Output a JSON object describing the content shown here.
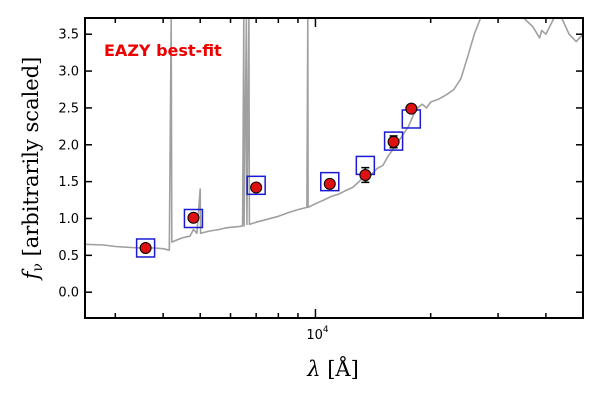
{
  "chart_data": {
    "type": "scatter",
    "xscale": "log",
    "xlim": [
      2500,
      50000
    ],
    "ylim": [
      -0.35,
      3.72
    ],
    "yticks": [
      0.0,
      0.5,
      1.0,
      1.5,
      2.0,
      2.5,
      3.0,
      3.5
    ],
    "ytick_labels": [
      "0.0",
      "0.5",
      "1.0",
      "1.5",
      "2.0",
      "2.5",
      "3.0",
      "3.5"
    ],
    "xtick_label": {
      "value": 10000,
      "base": "10",
      "exponent": "4"
    },
    "ylabel": "f_ν [arbitrarily scaled]",
    "ylabel_symbol": "f",
    "ylabel_subscript": "ν",
    "ylabel_text": " [arbitrarily scaled]",
    "xlabel": "λ [Å]",
    "xlabel_symbol": "λ",
    "xlabel_text": " [Å]",
    "annotation": {
      "text": "EAZY best-fit",
      "color": "#ee0000"
    },
    "colors": {
      "spectrum": "#a0a0a0",
      "observed": "#dd1111",
      "model": "#1a1ad4"
    },
    "model_points": [
      {
        "x": 3600,
        "y": 0.6
      },
      {
        "x": 4800,
        "y": 1.0
      },
      {
        "x": 7000,
        "y": 1.45
      },
      {
        "x": 10900,
        "y": 1.5
      },
      {
        "x": 13500,
        "y": 1.72
      },
      {
        "x": 16000,
        "y": 2.05
      },
      {
        "x": 17800,
        "y": 2.35
      }
    ],
    "observed_points": [
      {
        "x": 3600,
        "y": 0.6,
        "err": 0.03
      },
      {
        "x": 4800,
        "y": 1.01,
        "err": 0.03
      },
      {
        "x": 7000,
        "y": 1.42,
        "err": 0.04
      },
      {
        "x": 10900,
        "y": 1.47,
        "err": 0.04
      },
      {
        "x": 13500,
        "y": 1.59,
        "err": 0.1
      },
      {
        "x": 16000,
        "y": 2.04,
        "err": 0.08
      },
      {
        "x": 17800,
        "y": 2.49,
        "err": 0.04
      }
    ],
    "spectrum": [
      [
        2500,
        0.65
      ],
      [
        2800,
        0.64
      ],
      [
        3000,
        0.62
      ],
      [
        3200,
        0.61
      ],
      [
        3500,
        0.6
      ],
      [
        3800,
        0.6
      ],
      [
        4000,
        0.59
      ],
      [
        4150,
        0.57
      ],
      [
        4200,
        3.72
      ],
      [
        4215,
        0.68
      ],
      [
        4300,
        0.7
      ],
      [
        4500,
        0.74
      ],
      [
        4700,
        0.76
      ],
      [
        4800,
        0.85
      ],
      [
        4900,
        0.8
      ],
      [
        5000,
        1.4
      ],
      [
        5010,
        0.8
      ],
      [
        5300,
        0.83
      ],
      [
        5600,
        0.85
      ],
      [
        5800,
        0.87
      ],
      [
        6000,
        0.88
      ],
      [
        6300,
        0.89
      ],
      [
        6450,
        0.9
      ],
      [
        6500,
        3.72
      ],
      [
        6510,
        0.9
      ],
      [
        6600,
        3.72
      ],
      [
        6620,
        0.92
      ],
      [
        6700,
        3.72
      ],
      [
        6720,
        0.92
      ],
      [
        7000,
        0.95
      ],
      [
        7500,
        0.99
      ],
      [
        8000,
        1.03
      ],
      [
        8500,
        1.08
      ],
      [
        9000,
        1.12
      ],
      [
        9500,
        1.15
      ],
      [
        9550,
        3.72
      ],
      [
        9570,
        1.15
      ],
      [
        10000,
        1.2
      ],
      [
        10500,
        1.25
      ],
      [
        11000,
        1.3
      ],
      [
        11500,
        1.33
      ],
      [
        12000,
        1.38
      ],
      [
        12500,
        1.42
      ],
      [
        13000,
        1.5
      ],
      [
        13300,
        1.56
      ],
      [
        13600,
        1.5
      ],
      [
        14000,
        1.6
      ],
      [
        14500,
        1.68
      ],
      [
        15000,
        1.72
      ],
      [
        15500,
        1.85
      ],
      [
        16000,
        1.95
      ],
      [
        16500,
        2.05
      ],
      [
        17000,
        2.15
      ],
      [
        17500,
        2.25
      ],
      [
        18000,
        2.4
      ],
      [
        18500,
        2.5
      ],
      [
        19000,
        2.55
      ],
      [
        19500,
        2.5
      ],
      [
        20000,
        2.58
      ],
      [
        21000,
        2.62
      ],
      [
        22000,
        2.68
      ],
      [
        23000,
        2.75
      ],
      [
        24000,
        2.9
      ],
      [
        25000,
        3.2
      ],
      [
        26000,
        3.5
      ],
      [
        27000,
        3.72
      ],
      [
        35000,
        3.72
      ],
      [
        37000,
        3.6
      ],
      [
        38500,
        3.45
      ],
      [
        39000,
        3.55
      ],
      [
        40000,
        3.5
      ],
      [
        42000,
        3.72
      ],
      [
        44000,
        3.72
      ],
      [
        46000,
        3.5
      ],
      [
        48000,
        3.4
      ],
      [
        50000,
        3.5
      ]
    ]
  }
}
